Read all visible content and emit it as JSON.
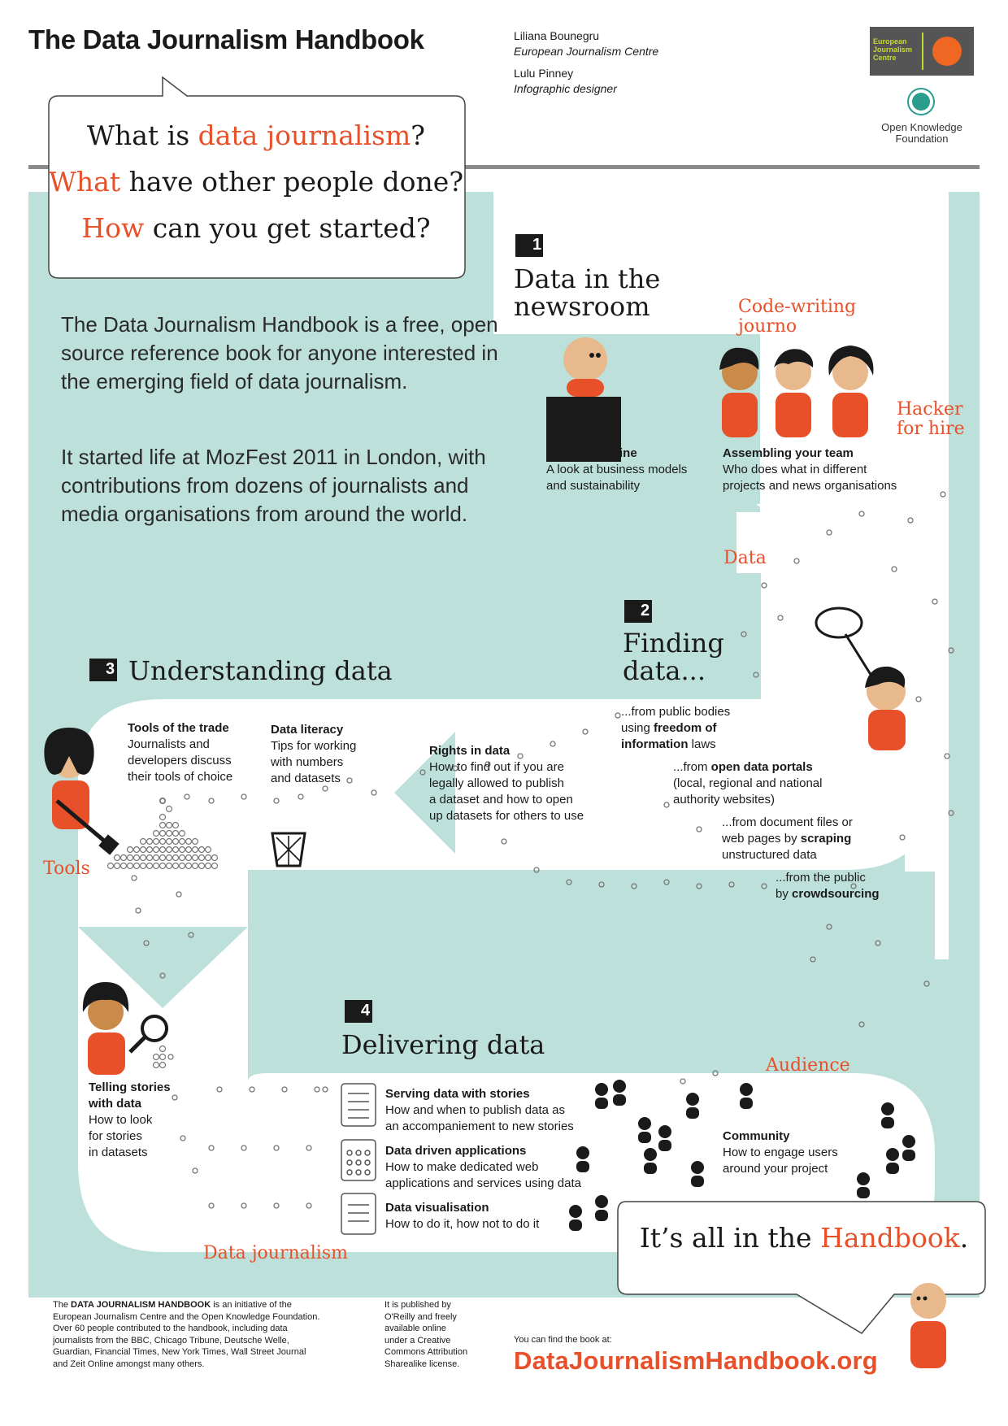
{
  "header": {
    "title": "The Data Journalism Handbook",
    "author1_name": "Liliana Bounegru",
    "author1_role": "European Journalism Centre",
    "author2_name": "Lulu Pinney",
    "author2_role": "Infographic designer",
    "ejc_logo_text": "European Journalism Centre",
    "okf_logo_text": "Open Knowledge Foundation"
  },
  "questions": {
    "q1_a": "What is ",
    "q1_b": "data journalism",
    "q1_c": "?",
    "q2_a": "What",
    "q2_b": " have other people done?",
    "q3_a": "How",
    "q3_b": " can you get started?"
  },
  "intro": {
    "p1": "The Data Journalism Handbook is a free, open source reference book for anyone interested in the emerging field of data journalism.",
    "p2": "It started life at MozFest 2011 in London, with contributions from dozens of journalists and media organisations from around the world."
  },
  "sections": {
    "s1": {
      "num": "1",
      "title_l1": "Data in the",
      "title_l2": "newsroom"
    },
    "s2": {
      "num": "2",
      "title_l1": "Finding",
      "title_l2": "data..."
    },
    "s3": {
      "num": "3",
      "title": "Understanding data"
    },
    "s4": {
      "num": "4",
      "title": "Delivering data"
    }
  },
  "labels": {
    "code_writing_l1": "Code-writing",
    "code_writing_l2": "journo",
    "hacker_l1": "Hacker",
    "hacker_l2": "for hire",
    "data": "Data",
    "tools": "Tools",
    "audience": "Audience",
    "data_journalism": "Data journalism"
  },
  "blocks": {
    "bottom_line_title": "The bottom line",
    "bottom_line_l1": "A look at business models",
    "bottom_line_l2": "and sustainability",
    "team_title": "Assembling your team",
    "team_l1": "Who does what in different",
    "team_l2": "projects and news organisations",
    "foi_l1": "...from public bodies",
    "foi_l2a": "using ",
    "foi_l2b": "freedom of",
    "foi_l3a": "information",
    "foi_l3b": " laws",
    "portals_l1a": "...from ",
    "portals_l1b": "open data portals",
    "portals_l2": "(local, regional and national",
    "portals_l3": "authority websites)",
    "scraping_l1": "...from document files or",
    "scraping_l2a": "web pages by ",
    "scraping_l2b": "scraping",
    "scraping_l3": "unstructured data",
    "crowd_l1": "...from the public",
    "crowd_l2a": "by ",
    "crowd_l2b": "crowdsourcing",
    "rights_title": "Rights in data",
    "rights_l1": "How to find out if you are",
    "rights_l2": "legally allowed to publish",
    "rights_l3": "a dataset and how to open",
    "rights_l4": "up datasets for others to use",
    "tools_title": "Tools of the trade",
    "tools_l1": "Journalists and",
    "tools_l2": "developers discuss",
    "tools_l3": "their tools of choice",
    "literacy_title": "Data literacy",
    "literacy_l1": "Tips for working",
    "literacy_l2": "with numbers",
    "literacy_l3": "and datasets",
    "telling_title_l1": "Telling stories",
    "telling_title_l2": "with data",
    "telling_l1": "How to look",
    "telling_l2": "for stories",
    "telling_l3": "in datasets",
    "serving_title": "Serving data with stories",
    "serving_l1": "How and when to publish data as",
    "serving_l2": "an accompaniement to new stories",
    "apps_title": "Data driven applications",
    "apps_l1": "How to make dedicated web",
    "apps_l2": "applications and services using data",
    "viz_title": "Data visualisation",
    "viz_l1": "How to do it, how not to do it",
    "community_title": "Community",
    "community_l1": "How to engage users",
    "community_l2": "around your project"
  },
  "handbook": {
    "a": "It’s all in the ",
    "b": "Handbook",
    "c": "."
  },
  "footer": {
    "col1_l1a": "The ",
    "col1_l1b": "DATA JOURNALISM HANDBOOK",
    "col1_l1c": " is an initiative of the",
    "col1_l2": "European Journalism Centre and the Open Knowledge Foundation.",
    "col1_l3": "Over 60 people contributed to the handbook, including data",
    "col1_l4": "journalists from the BBC, Chicago Tribune, Deutsche Welle,",
    "col1_l5": "Guardian, Financial Times, New York Times, Wall Street Journal",
    "col1_l6": "and Zeit Online amongst many others.",
    "col2_l1": "It is published by",
    "col2_l2": "O'Reilly and freely",
    "col2_l3": "available online",
    "col2_l4": "under a Creative",
    "col2_l5": "Commons Attribution",
    "col2_l6": "Sharealike license.",
    "find_label": "You can find the book at:",
    "url": "DataJournalismHandbook.org"
  },
  "colors": {
    "teal": "#bde1da",
    "accent": "#e8502a",
    "skin": "#e8b98c",
    "hair": "#1a1a1a",
    "gray_bar": "#8a8a8a"
  }
}
